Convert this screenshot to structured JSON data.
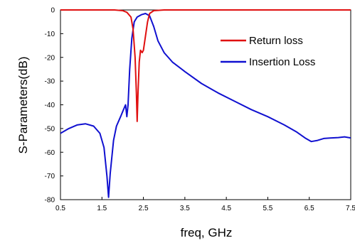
{
  "chart_data": {
    "type": "line",
    "xlabel": "freq, GHz",
    "ylabel": "S-Parameters(dB)",
    "xlim": [
      0.5,
      7.5
    ],
    "ylim": [
      -80,
      0
    ],
    "xticks": [
      "0.5",
      "1.5",
      "2.5",
      "3.5",
      "4.5",
      "5.5",
      "6.5",
      "7.5"
    ],
    "yticks": [
      "0",
      "-10",
      "-20",
      "-30",
      "-40",
      "-50",
      "-60",
      "-70",
      "-80"
    ],
    "grid": false,
    "legend_position": "top-right",
    "series": [
      {
        "name": "Return loss",
        "color": "#e01010",
        "points": [
          [
            0.5,
            0
          ],
          [
            1.8,
            0
          ],
          [
            2.0,
            -0.3
          ],
          [
            2.1,
            -1
          ],
          [
            2.2,
            -3
          ],
          [
            2.25,
            -8
          ],
          [
            2.3,
            -20
          ],
          [
            2.33,
            -35
          ],
          [
            2.35,
            -47
          ],
          [
            2.37,
            -35
          ],
          [
            2.4,
            -22
          ],
          [
            2.43,
            -17
          ],
          [
            2.47,
            -18
          ],
          [
            2.5,
            -17
          ],
          [
            2.55,
            -11
          ],
          [
            2.6,
            -5
          ],
          [
            2.65,
            -1.5
          ],
          [
            2.75,
            -0.3
          ],
          [
            3.0,
            0
          ],
          [
            7.5,
            0
          ]
        ]
      },
      {
        "name": "Insertion Loss",
        "color": "#1010d0",
        "points": [
          [
            0.5,
            -52
          ],
          [
            0.7,
            -50
          ],
          [
            0.9,
            -48.5
          ],
          [
            1.1,
            -48
          ],
          [
            1.3,
            -49
          ],
          [
            1.45,
            -52
          ],
          [
            1.55,
            -58
          ],
          [
            1.62,
            -70
          ],
          [
            1.66,
            -79
          ],
          [
            1.7,
            -69
          ],
          [
            1.78,
            -55
          ],
          [
            1.85,
            -49
          ],
          [
            1.95,
            -45
          ],
          [
            2.02,
            -42
          ],
          [
            2.07,
            -40
          ],
          [
            2.1,
            -45
          ],
          [
            2.13,
            -40
          ],
          [
            2.17,
            -25
          ],
          [
            2.22,
            -12
          ],
          [
            2.28,
            -5
          ],
          [
            2.35,
            -3
          ],
          [
            2.45,
            -2
          ],
          [
            2.55,
            -1.5
          ],
          [
            2.65,
            -2.5
          ],
          [
            2.75,
            -7
          ],
          [
            2.85,
            -13
          ],
          [
            3.0,
            -18
          ],
          [
            3.2,
            -22
          ],
          [
            3.5,
            -26
          ],
          [
            3.9,
            -31
          ],
          [
            4.3,
            -35
          ],
          [
            4.7,
            -38.5
          ],
          [
            5.1,
            -42
          ],
          [
            5.5,
            -45
          ],
          [
            5.9,
            -48.5
          ],
          [
            6.2,
            -51.5
          ],
          [
            6.4,
            -54
          ],
          [
            6.55,
            -55.5
          ],
          [
            6.7,
            -55
          ],
          [
            6.85,
            -54.2
          ],
          [
            7.0,
            -54
          ],
          [
            7.2,
            -53.8
          ],
          [
            7.35,
            -53.5
          ],
          [
            7.5,
            -54
          ]
        ]
      }
    ]
  }
}
